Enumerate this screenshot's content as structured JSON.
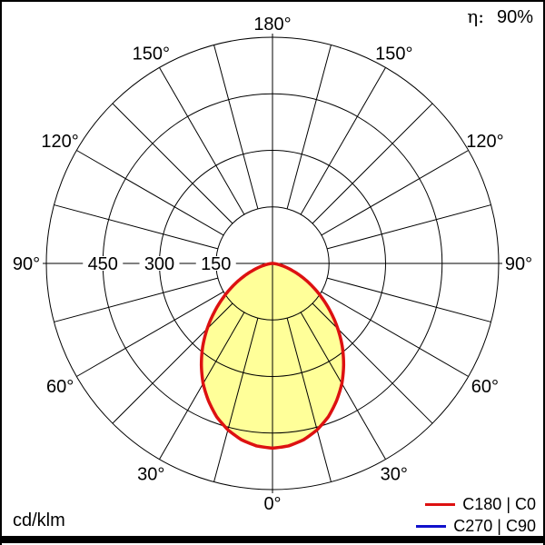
{
  "page": {
    "background": "#ffffff",
    "frame_color": "#000000"
  },
  "efficiency": {
    "label": "η:",
    "value": "90%"
  },
  "units_label": "cd/klm",
  "legend": [
    {
      "label": "C180 | C0",
      "color": "#dd1111"
    },
    {
      "label": "C270 | C90",
      "color": "#1111cc"
    }
  ],
  "chart_data": {
    "type": "polar",
    "description": "Photometric polar luminous intensity distribution curve of a luminaire, 0° at nadir (bottom), 180° at top",
    "units": "cd/klm",
    "efficiency_percent": 90,
    "angle_label_step_deg": 30,
    "angle_labels": [
      "0°",
      "30°",
      "60°",
      "90°",
      "120°",
      "150°",
      "180°"
    ],
    "grid": {
      "ring_values": [
        150,
        300,
        450,
        600
      ],
      "ring_labels": [
        "150",
        "300",
        "450"
      ],
      "radial_max": 600,
      "spoke_step_deg": 15
    },
    "series": [
      {
        "name": "C180 | C0",
        "color": "#dd1111",
        "fill": "#ffff99",
        "symmetric": true,
        "gamma_deg": [
          0,
          5,
          10,
          15,
          20,
          25,
          30,
          35,
          40,
          45,
          50,
          55,
          60,
          65,
          70,
          75,
          80,
          85,
          90
        ],
        "values_cd_per_klm": [
          490,
          486,
          475,
          457,
          433,
          402,
          368,
          329,
          288,
          245,
          202,
          161,
          123,
          88,
          57,
          33,
          15,
          4,
          0
        ]
      },
      {
        "name": "C270 | C90",
        "color": "#1111cc",
        "note": "curve coincides with C180 | C0 and is hidden beneath it"
      }
    ]
  }
}
